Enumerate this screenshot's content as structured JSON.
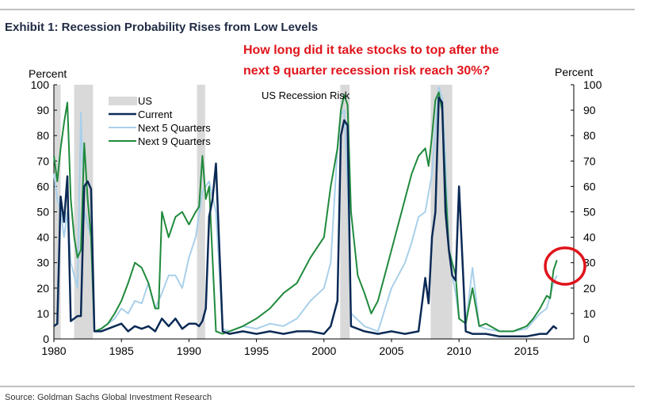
{
  "header": {
    "exhibit_title": "Exhibit 1: Recession Probability Rises from Low Levels",
    "question_line1": "How long did it take stocks to top after the",
    "question_line2": "next 9 quarter recession risk reach 30%?"
  },
  "footer": {
    "source": "Source: Goldman Sachs Global Investment Research"
  },
  "colors": {
    "current": "#0b2a55",
    "next5": "#a9d0ea",
    "next9": "#1f8a3c",
    "recession": "#d9d9d9",
    "highlight_circle": "#e0141b",
    "rule": "#9a9a9a"
  },
  "chart_data": {
    "type": "line",
    "title": "US Recession Risk",
    "ylabel_left": "Percent",
    "ylabel_right": "Percent",
    "xlim": [
      1980,
      2018.5
    ],
    "ylim": [
      0,
      100
    ],
    "x_ticks": [
      1980,
      1985,
      1990,
      1995,
      2000,
      2005,
      2010,
      2015
    ],
    "y_ticks": [
      0,
      10,
      20,
      30,
      40,
      50,
      60,
      70,
      80,
      90,
      100
    ],
    "legend": [
      "US",
      "Current",
      "Next 5 Quarters",
      "Next 9 Quarters"
    ],
    "recessions": [
      [
        1980.0,
        1980.5
      ],
      [
        1981.5,
        1982.9
      ],
      [
        1990.6,
        1991.2
      ],
      [
        2001.2,
        2001.9
      ],
      [
        2007.9,
        2009.5
      ]
    ],
    "annotation": "highlight circle around 2016-2017 Next 9 Quarters rise to ~30%",
    "series": [
      {
        "name": "Current",
        "x": [
          1980,
          1980.25,
          1980.5,
          1980.75,
          1981,
          1981.25,
          1981.5,
          1981.75,
          1982,
          1982.25,
          1982.5,
          1982.75,
          1983,
          1983.5,
          1984,
          1984.5,
          1985,
          1985.5,
          1986,
          1986.5,
          1987,
          1987.5,
          1988,
          1988.5,
          1989,
          1989.5,
          1990,
          1990.5,
          1990.75,
          1991,
          1991.25,
          1991.5,
          1991.75,
          1992,
          1992.5,
          1993,
          1994,
          1995,
          1996,
          1997,
          1998,
          1999,
          2000,
          2000.5,
          2001,
          2001.25,
          2001.5,
          2001.75,
          2002,
          2002.5,
          2003,
          2004,
          2005,
          2006,
          2007,
          2007.5,
          2007.75,
          2008,
          2008.25,
          2008.5,
          2008.75,
          2009,
          2009.25,
          2009.5,
          2009.75,
          2010,
          2010.5,
          2011,
          2012,
          2013,
          2014,
          2015,
          2016,
          2016.5,
          2017,
          2017.25
        ],
        "values": [
          5,
          6,
          56,
          46,
          64,
          7,
          8,
          9,
          9,
          60,
          62,
          59,
          3,
          3,
          4,
          5,
          6,
          3,
          5,
          4,
          5,
          3,
          8,
          5,
          8,
          4,
          6,
          6,
          5,
          7,
          12,
          48,
          55,
          69,
          3,
          2,
          3,
          2,
          3,
          2,
          3,
          3,
          2,
          5,
          15,
          80,
          86,
          84,
          5,
          4,
          3,
          2,
          3,
          2,
          3,
          24,
          14,
          40,
          50,
          95,
          93,
          50,
          35,
          25,
          23,
          60,
          3,
          2,
          2,
          1,
          1,
          1,
          2,
          2,
          5,
          4
        ]
      },
      {
        "name": "Next 5 Quarters",
        "x": [
          1980,
          1980.25,
          1980.5,
          1980.75,
          1981,
          1981.25,
          1981.5,
          1981.75,
          1982,
          1982.25,
          1982.5,
          1982.75,
          1983,
          1983.5,
          1984,
          1984.5,
          1985,
          1985.5,
          1986,
          1986.5,
          1987,
          1987.5,
          1988,
          1988.5,
          1989,
          1989.5,
          1990,
          1990.5,
          1991,
          1991.5,
          1992,
          1992.5,
          1993,
          1994,
          1995,
          1996,
          1997,
          1998,
          1999,
          2000,
          2000.5,
          2001,
          2001.25,
          2001.5,
          2001.75,
          2002,
          2003,
          2004,
          2005,
          2006,
          2006.5,
          2007,
          2007.5,
          2008,
          2008.5,
          2008.75,
          2009,
          2009.25,
          2009.5,
          2009.75,
          2010,
          2010.5,
          2011,
          2011.5,
          2012,
          2013,
          2014,
          2015,
          2016,
          2016.5,
          2017,
          2017.25
        ],
        "values": [
          65,
          55,
          50,
          40,
          50,
          30,
          25,
          20,
          89,
          50,
          45,
          40,
          3,
          4,
          6,
          8,
          12,
          10,
          15,
          14,
          22,
          12,
          18,
          25,
          25,
          20,
          32,
          40,
          58,
          62,
          50,
          4,
          3,
          5,
          4,
          6,
          5,
          8,
          15,
          20,
          30,
          75,
          88,
          90,
          60,
          10,
          5,
          3,
          20,
          30,
          38,
          48,
          50,
          65,
          99,
          95,
          70,
          35,
          25,
          18,
          8,
          6,
          28,
          5,
          4,
          3,
          3,
          4,
          10,
          12,
          22,
          25
        ]
      },
      {
        "name": "Next 9 Quarters",
        "x": [
          1980,
          1980.25,
          1980.5,
          1980.75,
          1981,
          1981.25,
          1981.5,
          1981.75,
          1982,
          1982.25,
          1982.5,
          1982.75,
          1983,
          1983.5,
          1984,
          1984.5,
          1985,
          1985.5,
          1986,
          1986.5,
          1987,
          1987.5,
          1987.75,
          1988,
          1988.5,
          1989,
          1989.5,
          1990,
          1990.5,
          1990.75,
          1991,
          1991.25,
          1991.5,
          1992,
          1992.5,
          1993,
          1994,
          1995,
          1996,
          1997,
          1998,
          1999,
          2000,
          2000.5,
          2001,
          2001.25,
          2001.5,
          2001.75,
          2002,
          2002.5,
          2003,
          2003.5,
          2004,
          2005,
          2006,
          2006.5,
          2007,
          2007.5,
          2007.75,
          2008,
          2008.25,
          2008.5,
          2008.75,
          2009,
          2009.25,
          2009.5,
          2009.75,
          2010,
          2010.5,
          2011,
          2011.5,
          2012,
          2013,
          2014,
          2015,
          2015.5,
          2016,
          2016.5,
          2016.75,
          2017,
          2017.25
        ],
        "values": [
          72,
          62,
          75,
          85,
          93,
          55,
          40,
          32,
          35,
          77,
          55,
          40,
          3,
          4,
          6,
          10,
          15,
          22,
          30,
          28,
          22,
          12,
          12,
          50,
          40,
          48,
          50,
          45,
          50,
          52,
          72,
          55,
          60,
          3,
          2,
          3,
          5,
          8,
          12,
          18,
          22,
          32,
          40,
          60,
          75,
          90,
          96,
          92,
          50,
          25,
          18,
          10,
          15,
          35,
          55,
          65,
          72,
          75,
          68,
          80,
          94,
          97,
          90,
          60,
          35,
          30,
          25,
          8,
          6,
          20,
          5,
          6,
          3,
          3,
          5,
          8,
          12,
          17,
          16,
          27,
          31
        ]
      }
    ]
  }
}
